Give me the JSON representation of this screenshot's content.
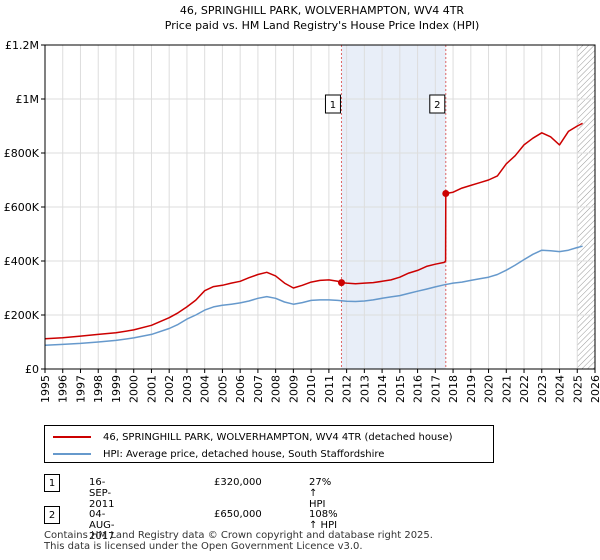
{
  "chart_data": {
    "type": "line",
    "title": "46, SPRINGHILL PARK, WOLVERHAMPTON, WV4 4TR",
    "subtitle": "Price paid vs. HM Land Registry's House Price Index (HPI)",
    "xlim": [
      1995,
      2026
    ],
    "ylim": [
      0,
      1200000
    ],
    "x_ticks": [
      "1995",
      "1996",
      "1997",
      "1998",
      "1999",
      "2000",
      "2001",
      "2002",
      "2003",
      "2004",
      "2005",
      "2006",
      "2007",
      "2008",
      "2009",
      "2010",
      "2011",
      "2012",
      "2013",
      "2014",
      "2015",
      "2016",
      "2017",
      "2018",
      "2019",
      "2020",
      "2021",
      "2022",
      "2023",
      "2024",
      "2025",
      "2026"
    ],
    "y_ticks": [
      {
        "value": 0,
        "label": "£0"
      },
      {
        "value": 200000,
        "label": "£200K"
      },
      {
        "value": 400000,
        "label": "£400K"
      },
      {
        "value": 600000,
        "label": "£600K"
      },
      {
        "value": 800000,
        "label": "£800K"
      },
      {
        "value": 1000000,
        "label": "£1M"
      },
      {
        "value": 1200000,
        "label": "£1.2M"
      }
    ],
    "grid": true,
    "series": [
      {
        "name": "46, SPRINGHILL PARK, WOLVERHAMPTON, WV4 4TR (detached house)",
        "color": "#cc0000",
        "x": [
          1995.0,
          1996.0,
          1997.0,
          1998.0,
          1999.0,
          2000.0,
          2001.0,
          2002.0,
          2002.5,
          2003.0,
          2003.5,
          2004.0,
          2004.5,
          2005.0,
          2005.5,
          2006.0,
          2006.5,
          2007.0,
          2007.5,
          2008.0,
          2008.5,
          2009.0,
          2009.5,
          2010.0,
          2010.5,
          2011.0,
          2011.5,
          2011.71,
          2012.0,
          2012.5,
          2013.0,
          2013.5,
          2014.0,
          2014.5,
          2015.0,
          2015.5,
          2016.0,
          2016.5,
          2017.0,
          2017.5,
          2017.58,
          2017.59,
          2018.0,
          2018.5,
          2019.0,
          2019.5,
          2020.0,
          2020.5,
          2021.0,
          2021.5,
          2022.0,
          2022.5,
          2023.0,
          2023.5,
          2024.0,
          2024.5,
          2025.0,
          2025.3
        ],
        "y": [
          112000,
          116000,
          122000,
          128000,
          134000,
          145000,
          162000,
          190000,
          208000,
          230000,
          255000,
          290000,
          305000,
          310000,
          318000,
          325000,
          338000,
          350000,
          358000,
          345000,
          318000,
          300000,
          310000,
          322000,
          328000,
          330000,
          325000,
          320000,
          318000,
          316000,
          318000,
          320000,
          325000,
          330000,
          340000,
          355000,
          365000,
          380000,
          388000,
          395000,
          400000,
          650000,
          655000,
          670000,
          680000,
          690000,
          700000,
          715000,
          760000,
          790000,
          830000,
          855000,
          875000,
          860000,
          830000,
          880000,
          900000,
          910000
        ]
      },
      {
        "name": "HPI: Average price, detached house, South Staffordshire",
        "color": "#6699cc",
        "x": [
          1995.0,
          1996.0,
          1997.0,
          1998.0,
          1999.0,
          2000.0,
          2001.0,
          2002.0,
          2002.5,
          2003.0,
          2003.5,
          2004.0,
          2004.5,
          2005.0,
          2005.5,
          2006.0,
          2006.5,
          2007.0,
          2007.5,
          2008.0,
          2008.5,
          2009.0,
          2009.5,
          2010.0,
          2010.5,
          2011.0,
          2011.5,
          2012.0,
          2012.5,
          2013.0,
          2013.5,
          2014.0,
          2014.5,
          2015.0,
          2015.5,
          2016.0,
          2016.5,
          2017.0,
          2017.5,
          2018.0,
          2018.5,
          2019.0,
          2019.5,
          2020.0,
          2020.5,
          2021.0,
          2021.5,
          2022.0,
          2022.5,
          2023.0,
          2023.5,
          2024.0,
          2024.5,
          2025.0,
          2025.3
        ],
        "y": [
          88000,
          91000,
          95000,
          100000,
          106000,
          115000,
          128000,
          150000,
          165000,
          185000,
          200000,
          218000,
          230000,
          236000,
          240000,
          245000,
          252000,
          262000,
          268000,
          262000,
          248000,
          240000,
          246000,
          254000,
          256000,
          256000,
          254000,
          251000,
          250000,
          252000,
          256000,
          262000,
          267000,
          272000,
          280000,
          288000,
          296000,
          304000,
          312000,
          318000,
          322000,
          328000,
          334000,
          340000,
          350000,
          366000,
          385000,
          405000,
          425000,
          440000,
          438000,
          435000,
          440000,
          450000,
          455000
        ]
      }
    ],
    "vlines": [
      2011.71,
      2017.59
    ],
    "shaded_region": [
      2011.71,
      2017.59
    ],
    "hatched_from": 2025.0,
    "markers": [
      {
        "label": "1",
        "x": 2011.71,
        "y": 320000
      },
      {
        "label": "2",
        "x": 2017.59,
        "y": 650000
      }
    ]
  },
  "legend": {
    "items": [
      {
        "label": "46, SPRINGHILL PARK, WOLVERHAMPTON, WV4 4TR (detached house)",
        "color": "#cc0000"
      },
      {
        "label": "HPI: Average price, detached house, South Staffordshire",
        "color": "#6699cc"
      }
    ]
  },
  "annotations": [
    {
      "num": "1",
      "date": "16-SEP-2011",
      "price": "£320,000",
      "hpi": "27% ↑ HPI"
    },
    {
      "num": "2",
      "date": "04-AUG-2017",
      "price": "£650,000",
      "hpi": "108% ↑ HPI"
    }
  ],
  "footer": {
    "line1": "Contains HM Land Registry data © Crown copyright and database right 2025.",
    "line2": "This data is licensed under the Open Government Licence v3.0."
  }
}
